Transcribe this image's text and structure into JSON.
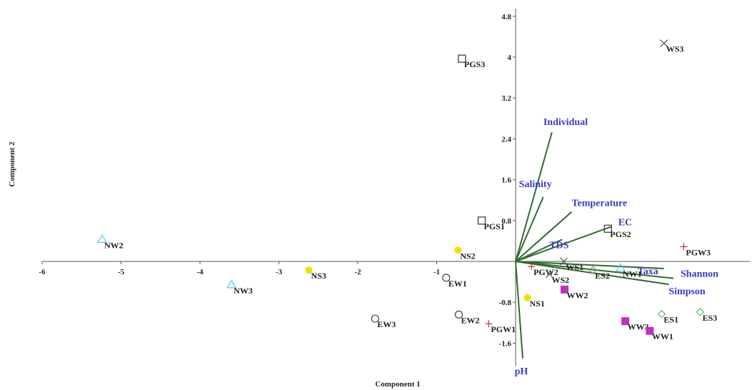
{
  "chart_data": {
    "type": "scatter",
    "xlabel": "Component 1",
    "ylabel": "Component 2",
    "xlim": [
      -6,
      3
    ],
    "ylim": [
      -2.0,
      5.2
    ],
    "x_ticks": [
      -6,
      -5,
      -4,
      -3,
      -2,
      -1
    ],
    "y_ticks": [
      4.8,
      4,
      3.2,
      2.4,
      1.6,
      0.8,
      -0.8,
      -1.6
    ],
    "x_tick_labels": [
      "-6",
      "-5",
      "-4",
      "-3",
      "-2",
      "-1"
    ],
    "y_tick_labels": [
      "4.8",
      "4",
      "3.2",
      "2.4",
      "1.6",
      "0.8",
      "-0.8",
      "-1.6"
    ],
    "points": [
      {
        "label": "WS3",
        "x": 1.88,
        "y": 4.27,
        "marker": "cross",
        "color": "#555555"
      },
      {
        "label": "PGS3",
        "x": -0.68,
        "y": 3.97,
        "marker": "square",
        "color": "#333333"
      },
      {
        "label": "PGS1",
        "x": -0.43,
        "y": 0.8,
        "marker": "square",
        "color": "#333333"
      },
      {
        "label": "PGS2",
        "x": 1.17,
        "y": 0.64,
        "marker": "square",
        "color": "#333333"
      },
      {
        "label": "NW2",
        "x": -5.24,
        "y": 0.43,
        "marker": "triangle",
        "color": "#5bc8e6"
      },
      {
        "label": "NW3",
        "x": -3.6,
        "y": -0.46,
        "marker": "triangle",
        "color": "#5bc8e6"
      },
      {
        "label": "NW1",
        "x": 1.33,
        "y": -0.13,
        "marker": "triangle",
        "color": "#5bc8e6"
      },
      {
        "label": "NS2",
        "x": -0.73,
        "y": 0.22,
        "marker": "dot",
        "color": "#f0e000"
      },
      {
        "label": "NS3",
        "x": -2.62,
        "y": -0.17,
        "marker": "dot",
        "color": "#f0e000"
      },
      {
        "label": "NS1",
        "x": 0.15,
        "y": -0.71,
        "marker": "dot",
        "color": "#f0e000"
      },
      {
        "label": "EW1",
        "x": -0.88,
        "y": -0.32,
        "marker": "circle",
        "color": "#444444"
      },
      {
        "label": "EW2",
        "x": -0.72,
        "y": -1.04,
        "marker": "circle",
        "color": "#444444"
      },
      {
        "label": "EW3",
        "x": -1.78,
        "y": -1.12,
        "marker": "circle",
        "color": "#444444"
      },
      {
        "label": "PGW1",
        "x": -0.34,
        "y": -1.22,
        "marker": "plus",
        "color": "#c03030"
      },
      {
        "label": "PGW2",
        "x": 0.2,
        "y": -0.1,
        "marker": "plus",
        "color": "#c03030"
      },
      {
        "label": "PGW3",
        "x": 2.13,
        "y": 0.29,
        "marker": "plus",
        "color": "#c03030"
      },
      {
        "label": "WS1",
        "x": 0.61,
        "y": 0.0,
        "marker": "cross",
        "color": "#555555"
      },
      {
        "label": "WS2",
        "x": 0.43,
        "y": -0.25,
        "marker": "cross",
        "color": "#555555"
      },
      {
        "label": "WW2",
        "x": 0.62,
        "y": -0.55,
        "marker": "filled-square",
        "color": "#c030c0"
      },
      {
        "label": "WW3",
        "x": 1.39,
        "y": -1.17,
        "marker": "filled-square",
        "color": "#c030c0"
      },
      {
        "label": "WW1",
        "x": 1.7,
        "y": -1.36,
        "marker": "filled-square",
        "color": "#c030c0"
      },
      {
        "label": "ES1",
        "x": 1.85,
        "y": -1.03,
        "marker": "diamond",
        "color": "#6ab36a"
      },
      {
        "label": "ES2",
        "x": 0.98,
        "y": -0.17,
        "marker": "diamond",
        "color": "#6ab36a"
      },
      {
        "label": "ES3",
        "x": 2.34,
        "y": -0.99,
        "marker": "diamond",
        "color": "#6ab36a"
      }
    ],
    "vectors": [
      {
        "label": "Individual",
        "x": 0.46,
        "y": 2.53
      },
      {
        "label": "Salinity",
        "x": 0.35,
        "y": 1.26
      },
      {
        "label": "Temperature",
        "x": 0.71,
        "y": 0.97
      },
      {
        "label": "EC",
        "x": 1.21,
        "y": 0.68
      },
      {
        "label": "TDS",
        "x": 0.59,
        "y": 0.43
      },
      {
        "label": "Taxa",
        "x": 1.88,
        "y": -0.14
      },
      {
        "label": "Shannon",
        "x": 2.0,
        "y": -0.33
      },
      {
        "label": "Simpson",
        "x": 1.94,
        "y": -0.45
      },
      {
        "label": "pH",
        "x": 0.09,
        "y": -1.9
      }
    ],
    "colors": {
      "vector": "#2f6b2f",
      "vector_label": "#3b3bc9",
      "axis": "#555555"
    }
  }
}
